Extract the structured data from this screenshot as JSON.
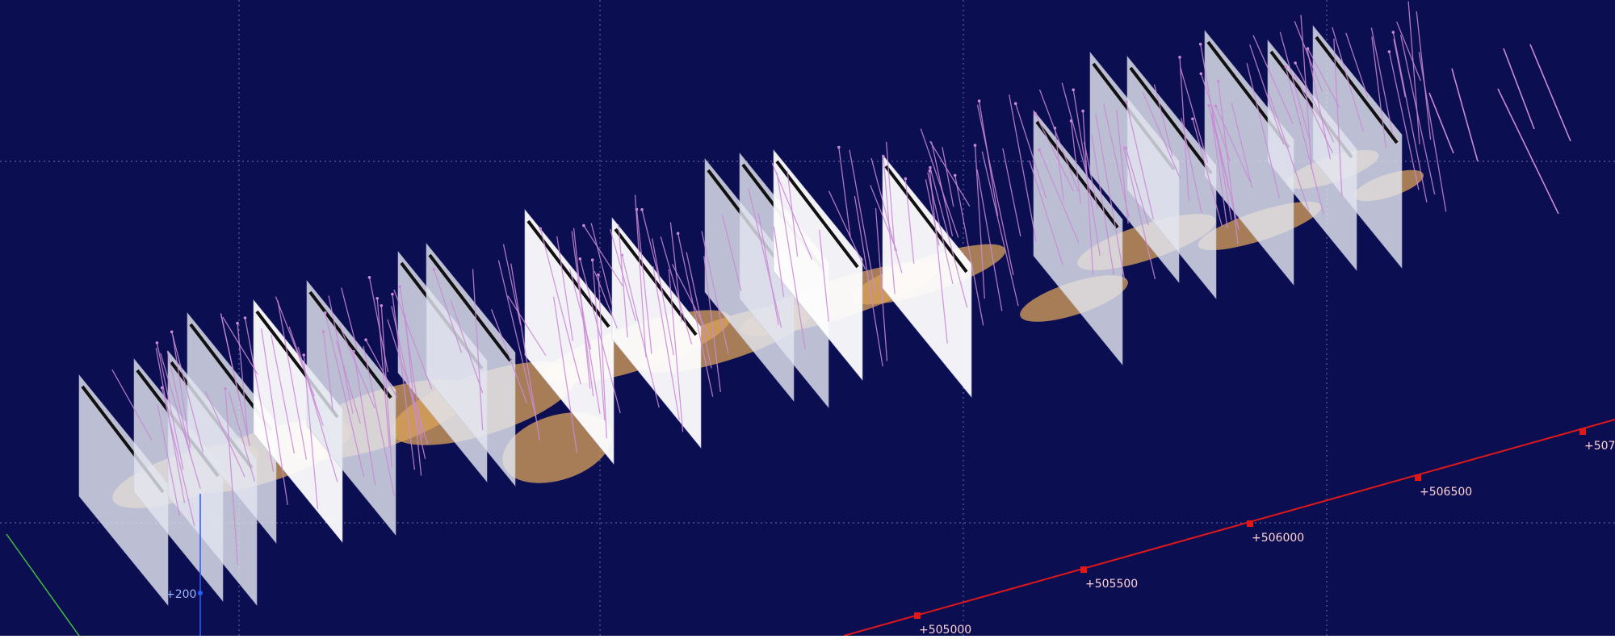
{
  "viewport": {
    "background_color": "#0c0e52",
    "grid_color": "#6b6fa8",
    "scene": "3D mining model view with vertical section planes, drillholes and orebody shell"
  },
  "colors": {
    "section_plane": "#e3e6f0",
    "section_plane_bright": "#ffffff",
    "trace_line": "#111111",
    "drillhole": "#c98ad6",
    "orebody": "#d9a35a",
    "easting_axis": "#e01818",
    "vertical_axis": "#2a5cff",
    "north_axis": "#3fbf3f",
    "axis_label": "#ffd2d2"
  },
  "easting_axis": {
    "labels": [
      "+505000",
      "+505500",
      "+506000",
      "+506500",
      "+507"
    ]
  },
  "vertical_axis": {
    "labels": [
      "+200"
    ]
  }
}
